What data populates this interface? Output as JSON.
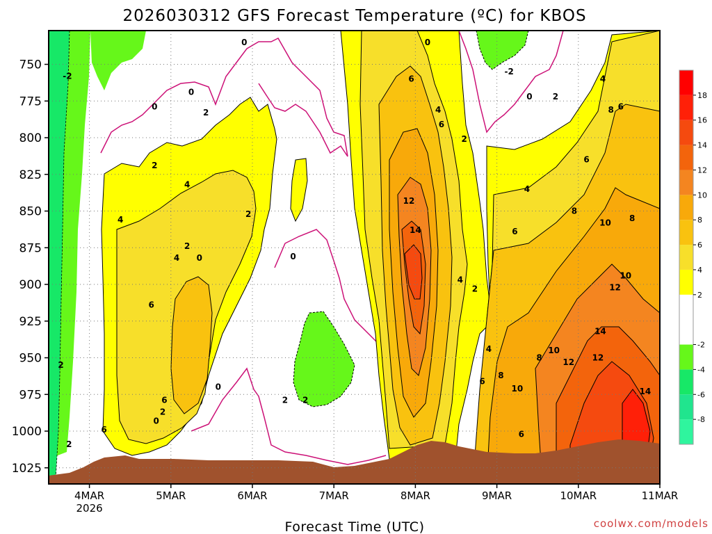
{
  "chart_data": {
    "type": "heatmap",
    "title": "2026030312 GFS Forecast Temperature (ºC) for KBOS",
    "xlabel": "Forecast Time (UTC)",
    "ylabel": "",
    "credit": "coolwx.com/models",
    "x_ticks": [
      {
        "label": "4MAR",
        "sub": "2026",
        "day": 1
      },
      {
        "label": "5MAR",
        "sub": "",
        "day": 2
      },
      {
        "label": "6MAR",
        "sub": "",
        "day": 3
      },
      {
        "label": "7MAR",
        "sub": "",
        "day": 4
      },
      {
        "label": "8MAR",
        "sub": "",
        "day": 5
      },
      {
        "label": "9MAR",
        "sub": "",
        "day": 6
      },
      {
        "label": "10MAR",
        "sub": "",
        "day": 7
      },
      {
        "label": "11MAR",
        "sub": "",
        "day": 8
      }
    ],
    "x_range_days": [
      0.5,
      8.0
    ],
    "y_ticks": [
      750,
      775,
      800,
      825,
      850,
      875,
      900,
      925,
      950,
      975,
      1000,
      1025
    ],
    "y_range_hpa": [
      727,
      1036
    ],
    "colorbar": {
      "ticks": [
        18,
        16,
        14,
        12,
        10,
        8,
        6,
        4,
        2,
        -2,
        -4,
        -6,
        -8
      ],
      "bins": [
        {
          "lo": -10,
          "hi": -8,
          "color": "#2ff59e"
        },
        {
          "lo": -8,
          "hi": -6,
          "color": "#20e58e"
        },
        {
          "lo": -6,
          "hi": -4,
          "color": "#17e867"
        },
        {
          "lo": -4,
          "hi": -2,
          "color": "#66f71a"
        },
        {
          "lo": -2,
          "hi": 2,
          "color": "#ffffff"
        },
        {
          "lo": 2,
          "hi": 4,
          "color": "#ffff00"
        },
        {
          "lo": 4,
          "hi": 6,
          "color": "#f7df2a"
        },
        {
          "lo": 6,
          "hi": 8,
          "color": "#f9c20f"
        },
        {
          "lo": 8,
          "hi": 10,
          "color": "#f8a90a"
        },
        {
          "lo": 10,
          "hi": 12,
          "color": "#f48520"
        },
        {
          "lo": 12,
          "hi": 14,
          "color": "#f3640c"
        },
        {
          "lo": 14,
          "hi": 16,
          "color": "#f54a0f"
        },
        {
          "lo": 16,
          "hi": 18,
          "color": "#ff2008"
        },
        {
          "lo": 18,
          "hi": 20,
          "color": "#ff0000"
        }
      ]
    },
    "terrain_color": "#a0522d",
    "contour_labels": [
      {
        "v": "-2",
        "day": 0.73,
        "p": 758
      },
      {
        "v": "0",
        "day": 1.8,
        "p": 779
      },
      {
        "v": "0",
        "day": 2.25,
        "p": 769
      },
      {
        "v": "0",
        "day": 2.9,
        "p": 735
      },
      {
        "v": "2",
        "day": 1.8,
        "p": 819
      },
      {
        "v": "2",
        "day": 2.43,
        "p": 783
      },
      {
        "v": "4",
        "day": 2.2,
        "p": 832
      },
      {
        "v": "4",
        "day": 1.38,
        "p": 856
      },
      {
        "v": "2",
        "day": 2.2,
        "p": 874
      },
      {
        "v": "4",
        "day": 2.07,
        "p": 882
      },
      {
        "v": "0",
        "day": 2.35,
        "p": 882
      },
      {
        "v": "2",
        "day": 2.95,
        "p": 852
      },
      {
        "v": "0",
        "day": 3.5,
        "p": 881
      },
      {
        "v": "6",
        "day": 1.76,
        "p": 914
      },
      {
        "v": "2",
        "day": 0.65,
        "p": 955
      },
      {
        "v": "6",
        "day": 1.92,
        "p": 979
      },
      {
        "v": "6",
        "day": 1.18,
        "p": 999
      },
      {
        "v": "2",
        "day": 1.9,
        "p": 987
      },
      {
        "v": "0",
        "day": 1.82,
        "p": 993
      },
      {
        "v": "0",
        "day": 2.58,
        "p": 970
      },
      {
        "v": "2",
        "day": 3.4,
        "p": 979
      },
      {
        "v": "2",
        "day": 3.65,
        "p": 979
      },
      {
        "v": "6",
        "day": 4.95,
        "p": 760
      },
      {
        "v": "4",
        "day": 5.28,
        "p": 781
      },
      {
        "v": "6",
        "day": 5.32,
        "p": 791
      },
      {
        "v": "2",
        "day": 5.6,
        "p": 801
      },
      {
        "v": "12",
        "day": 4.92,
        "p": 843
      },
      {
        "v": "14",
        "day": 5.0,
        "p": 863
      },
      {
        "v": "4",
        "day": 5.55,
        "p": 897
      },
      {
        "v": "2",
        "day": 5.73,
        "p": 903
      },
      {
        "v": "0",
        "day": 5.15,
        "p": 735
      },
      {
        "v": "-2",
        "day": 6.15,
        "p": 755
      },
      {
        "v": "0",
        "day": 6.4,
        "p": 772
      },
      {
        "v": "2",
        "day": 6.72,
        "p": 772
      },
      {
        "v": "4",
        "day": 7.3,
        "p": 760
      },
      {
        "v": "8",
        "day": 7.4,
        "p": 781
      },
      {
        "v": "6",
        "day": 7.52,
        "p": 779
      },
      {
        "v": "6",
        "day": 7.1,
        "p": 815
      },
      {
        "v": "4",
        "day": 6.37,
        "p": 835
      },
      {
        "v": "8",
        "day": 6.95,
        "p": 850
      },
      {
        "v": "10",
        "day": 7.33,
        "p": 858
      },
      {
        "v": "8",
        "day": 7.66,
        "p": 855
      },
      {
        "v": "6",
        "day": 6.22,
        "p": 864
      },
      {
        "v": "10",
        "day": 7.58,
        "p": 894
      },
      {
        "v": "12",
        "day": 7.45,
        "p": 902
      },
      {
        "v": "4",
        "day": 5.9,
        "p": 944
      },
      {
        "v": "6",
        "day": 5.82,
        "p": 966
      },
      {
        "v": "8",
        "day": 6.05,
        "p": 962
      },
      {
        "v": "8",
        "day": 6.52,
        "p": 950
      },
      {
        "v": "10",
        "day": 6.7,
        "p": 945
      },
      {
        "v": "12",
        "day": 6.88,
        "p": 953
      },
      {
        "v": "14",
        "day": 7.27,
        "p": 932
      },
      {
        "v": "12",
        "day": 7.24,
        "p": 950
      },
      {
        "v": "10",
        "day": 6.25,
        "p": 971
      },
      {
        "v": "14",
        "day": 7.82,
        "p": 973
      },
      {
        "v": "6",
        "day": 6.3,
        "p": 1002
      },
      {
        "v": "2",
        "day": 0.75,
        "p": 1009
      }
    ]
  }
}
